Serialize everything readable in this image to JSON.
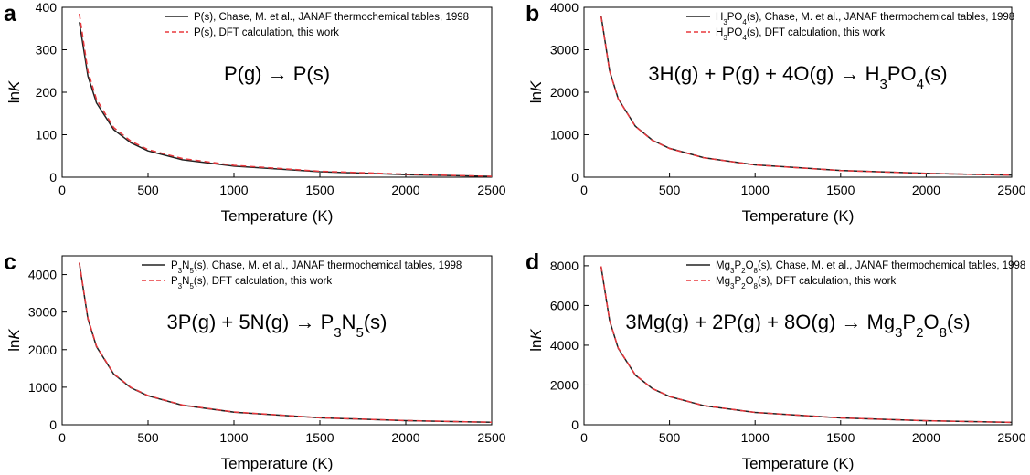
{
  "chart_data": [
    {
      "panel": "a",
      "type": "line",
      "xlabel": "Temperature (K)",
      "ylabel": "lnK",
      "xlim": [
        0,
        2500
      ],
      "ylim": [
        0,
        400
      ],
      "xticks": [
        0,
        500,
        1000,
        1500,
        2000,
        2500
      ],
      "yticks": [
        0,
        100,
        200,
        300,
        400
      ],
      "equation": "P(g) → P(s)",
      "legend_position": "top-right",
      "series": [
        {
          "name": "P(s), Chase, M. et al., JANAF thermochemical tables, 1998",
          "color": "#222222",
          "dash": "solid",
          "x": [
            100,
            150,
            200,
            300,
            400,
            500,
            700,
            1000,
            1500,
            2000,
            2500
          ],
          "y": [
            365,
            238,
            175,
            112,
            81,
            62,
            41,
            26,
            13,
            6,
            2
          ]
        },
        {
          "name": "P(s), DFT calculation, this work",
          "color": "#e8383d",
          "dash": "dashed",
          "x": [
            100,
            150,
            200,
            300,
            400,
            500,
            700,
            1000,
            1500,
            2000,
            2500
          ],
          "y": [
            385,
            250,
            183,
            117,
            85,
            65,
            44,
            28,
            14,
            7,
            2
          ]
        }
      ]
    },
    {
      "panel": "b",
      "type": "line",
      "xlabel": "Temperature (K)",
      "ylabel": "lnK",
      "xlim": [
        0,
        2500
      ],
      "ylim": [
        0,
        4000
      ],
      "xticks": [
        0,
        500,
        1000,
        1500,
        2000,
        2500
      ],
      "yticks": [
        0,
        1000,
        2000,
        3000,
        4000
      ],
      "equation": "3H(g) + P(g) + 4O(g) → H₃PO₄(s)",
      "legend_position": "top-right",
      "series": [
        {
          "name": "H₃PO₄(s), Chase, M. et al., JANAF thermochemical tables, 1998",
          "color": "#222222",
          "dash": "solid",
          "x": [
            100,
            150,
            200,
            300,
            400,
            500,
            700,
            1000,
            1500,
            2000,
            2500
          ],
          "y": [
            3800,
            2500,
            1850,
            1200,
            870,
            680,
            460,
            290,
            160,
            90,
            50
          ]
        },
        {
          "name": "H₃PO₄(s), DFT calculation, this work",
          "color": "#e8383d",
          "dash": "dashed",
          "x": [
            100,
            150,
            200,
            300,
            400,
            500,
            700,
            1000,
            1500,
            2000,
            2500
          ],
          "y": [
            3780,
            2490,
            1845,
            1195,
            865,
            676,
            458,
            288,
            158,
            88,
            49
          ]
        }
      ]
    },
    {
      "panel": "c",
      "type": "line",
      "xlabel": "Temperature (K)",
      "ylabel": "lnK",
      "xlim": [
        0,
        2500
      ],
      "ylim": [
        0,
        4500
      ],
      "xticks": [
        0,
        500,
        1000,
        1500,
        2000,
        2500
      ],
      "yticks": [
        0,
        1000,
        2000,
        3000,
        4000
      ],
      "equation": "3P(g) + 5N(g) → P₃N₅(s)",
      "legend_position": "top-right",
      "series": [
        {
          "name": "P₃N₅(s), Chase, M. et al., JANAF thermochemical tables, 1998",
          "color": "#222222",
          "dash": "solid",
          "x": [
            100,
            150,
            200,
            300,
            400,
            500,
            700,
            1000,
            1500,
            2000,
            2500
          ],
          "y": [
            4300,
            2820,
            2080,
            1350,
            985,
            770,
            520,
            335,
            185,
            110,
            65
          ]
        },
        {
          "name": "P₃N₅(s), DFT calculation, this work",
          "color": "#e8383d",
          "dash": "dashed",
          "x": [
            100,
            150,
            200,
            300,
            400,
            500,
            700,
            1000,
            1500,
            2000,
            2500
          ],
          "y": [
            4320,
            2840,
            2095,
            1360,
            995,
            778,
            526,
            340,
            188,
            112,
            66
          ]
        }
      ]
    },
    {
      "panel": "d",
      "type": "line",
      "xlabel": "Temperature (K)",
      "ylabel": "lnK",
      "xlim": [
        0,
        2500
      ],
      "ylim": [
        0,
        8500
      ],
      "xticks": [
        0,
        500,
        1000,
        1500,
        2000,
        2500
      ],
      "yticks": [
        0,
        2000,
        4000,
        6000,
        8000
      ],
      "equation": "3Mg(g) + 2P(g) + 8O(g) → Mg₃P₂O₈(s)",
      "legend_position": "top-right",
      "series": [
        {
          "name": "Mg₃P₂O₈(s), Chase, M. et al., JANAF thermochemical tables, 1998",
          "color": "#222222",
          "dash": "solid",
          "x": [
            100,
            150,
            200,
            300,
            400,
            500,
            700,
            1000,
            1500,
            2000,
            2500
          ],
          "y": [
            7950,
            5220,
            3850,
            2500,
            1820,
            1420,
            960,
            620,
            345,
            200,
            120
          ]
        },
        {
          "name": "Mg₃P₂O₈(s), DFT calculation, this work",
          "color": "#e8383d",
          "dash": "dashed",
          "x": [
            100,
            150,
            200,
            300,
            400,
            500,
            700,
            1000,
            1500,
            2000,
            2500
          ],
          "y": [
            7970,
            5235,
            3862,
            2508,
            1826,
            1425,
            963,
            622,
            346,
            201,
            121
          ]
        }
      ]
    }
  ]
}
